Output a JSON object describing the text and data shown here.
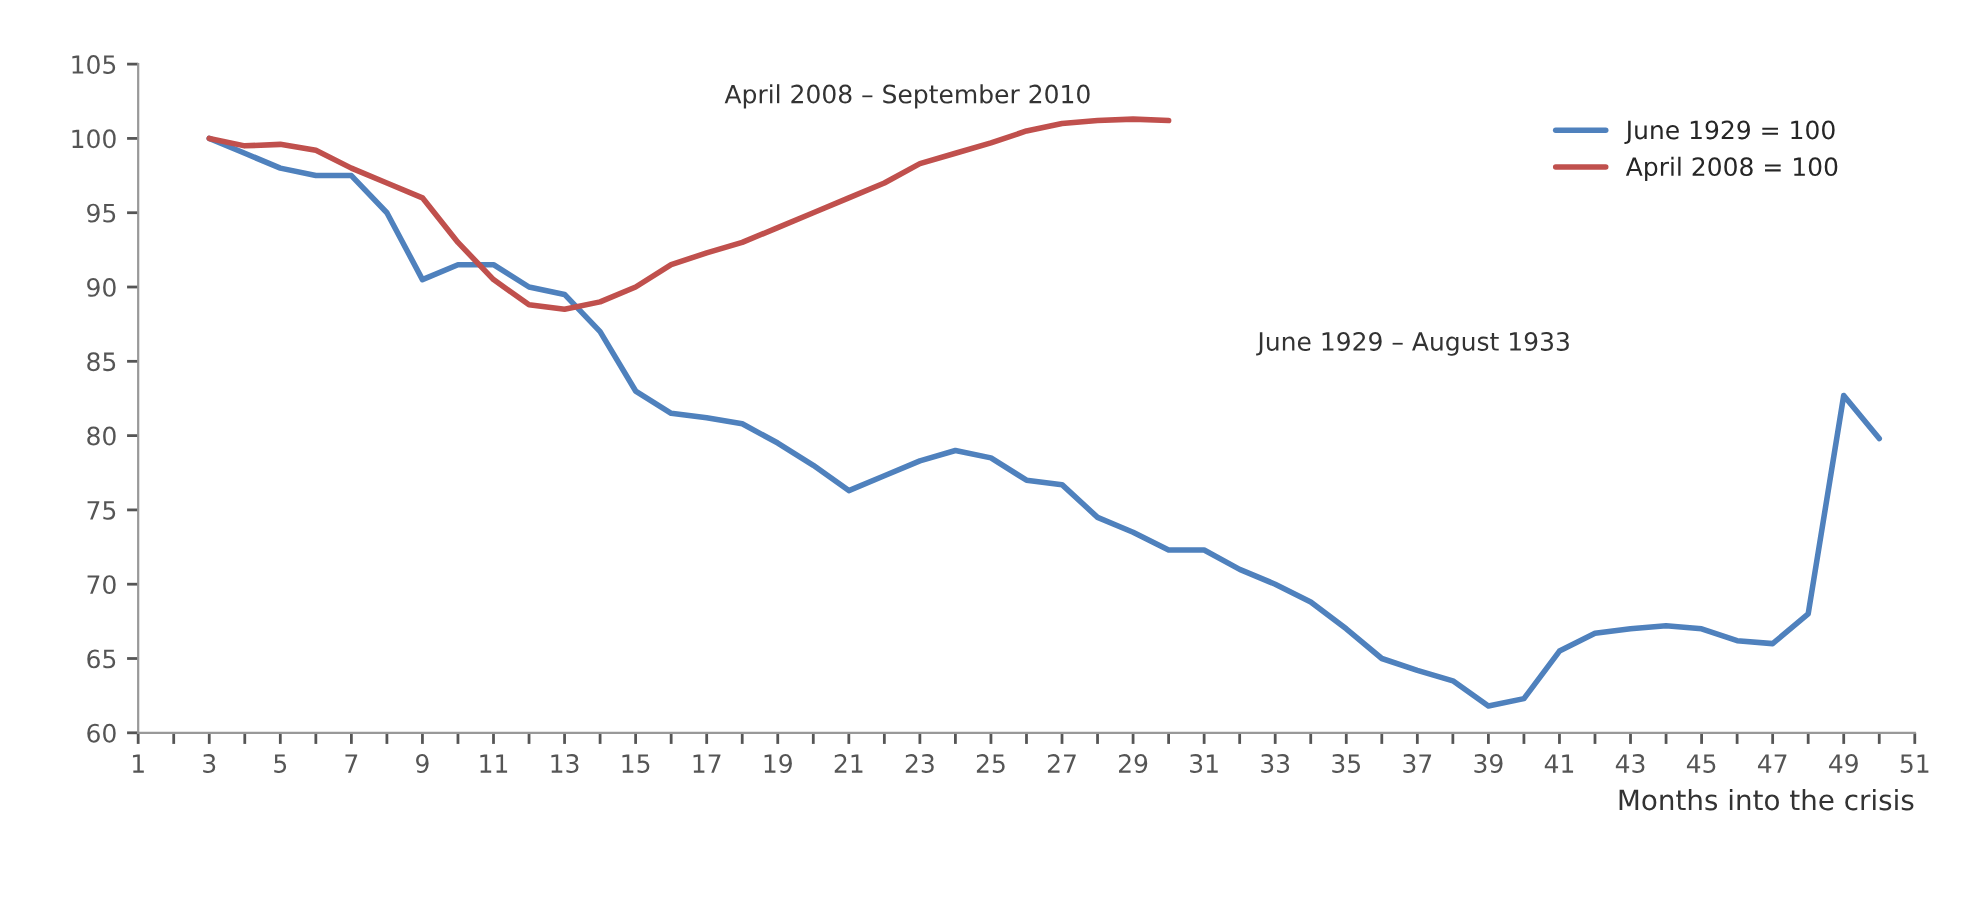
{
  "chart_data": {
    "type": "line",
    "xlabel": "Months into the crisis",
    "annotations": [
      "April 2008 – September 2010",
      "June 1929 – August 1933"
    ],
    "series": [
      {
        "name": "June 1929 = 100",
        "color": "#4f81bd",
        "x": [
          3,
          4,
          5,
          6,
          7,
          8,
          9,
          10,
          11,
          12,
          13,
          14,
          15,
          16,
          17,
          18,
          19,
          20,
          21,
          22,
          23,
          24,
          25,
          26,
          27,
          28,
          29,
          30,
          31,
          32,
          33,
          34,
          35,
          36,
          37,
          38,
          39,
          40,
          41,
          42,
          43,
          44,
          45,
          46,
          47,
          48,
          49,
          50
        ],
        "values": [
          100,
          99,
          98,
          97.5,
          97.5,
          95,
          90.5,
          91.5,
          91.5,
          90,
          89.5,
          87,
          83,
          81.5,
          81.2,
          80.8,
          79.5,
          78,
          76.3,
          77.3,
          78.3,
          79,
          78.5,
          77,
          76.7,
          74.5,
          73.5,
          72.3,
          72.3,
          71,
          70,
          68.8,
          67,
          65,
          64.2,
          63.5,
          61.8,
          62.3,
          65.5,
          66.7,
          67,
          67.2,
          67,
          66.2,
          66,
          68,
          82.7,
          79.8
        ]
      },
      {
        "name": "April 2008 = 100",
        "color": "#c0504d",
        "x": [
          3,
          4,
          5,
          6,
          7,
          8,
          9,
          10,
          11,
          12,
          13,
          14,
          15,
          16,
          17,
          18,
          19,
          20,
          21,
          22,
          23,
          24,
          25,
          26,
          27,
          28,
          29,
          30
        ],
        "values": [
          100,
          99.5,
          99.6,
          99.2,
          98,
          97,
          96,
          93,
          90.5,
          88.8,
          88.5,
          89,
          90,
          91.5,
          92.3,
          93,
          94,
          95,
          96,
          97,
          98.3,
          99,
          99.7,
          100.5,
          101,
          101.2,
          101.3,
          101.2
        ]
      }
    ],
    "xlim": [
      1,
      51
    ],
    "xticks": [
      1,
      {
        "value": 2,
        "label": null
      },
      3,
      {
        "value": 4,
        "label": null
      },
      5,
      {
        "value": 6,
        "label": null
      },
      7,
      {
        "value": 8,
        "label": null
      },
      9,
      {
        "value": 10,
        "label": null
      },
      11,
      {
        "value": 12,
        "label": null
      },
      13,
      {
        "value": 14,
        "label": null
      },
      15,
      {
        "value": 16,
        "label": null
      },
      17,
      {
        "value": 18,
        "label": null
      },
      19,
      {
        "value": 20,
        "label": null
      },
      21,
      {
        "value": 22,
        "label": null
      },
      23,
      {
        "value": 24,
        "label": null
      },
      25,
      {
        "value": 26,
        "label": null
      },
      27,
      {
        "value": 28,
        "label": null
      },
      29,
      {
        "value": 30,
        "label": null
      },
      31,
      {
        "value": 32,
        "label": null
      },
      33,
      {
        "value": 34,
        "label": null
      },
      35,
      {
        "value": 36,
        "label": null
      },
      37,
      {
        "value": 38,
        "label": null
      },
      39,
      {
        "value": 40,
        "label": null
      },
      41,
      {
        "value": 42,
        "label": null
      },
      43,
      {
        "value": 44,
        "label": null
      },
      45,
      {
        "value": 46,
        "label": null
      },
      47,
      {
        "value": 48,
        "label": null
      },
      49,
      {
        "value": 50,
        "label": null
      },
      51
    ],
    "ylim": [
      60,
      105
    ],
    "yticks": [
      60,
      65,
      70,
      75,
      80,
      85,
      90,
      95,
      100,
      105
    ],
    "grid": false,
    "legend": "top right",
    "marker": "none",
    "line_style": "solid"
  }
}
